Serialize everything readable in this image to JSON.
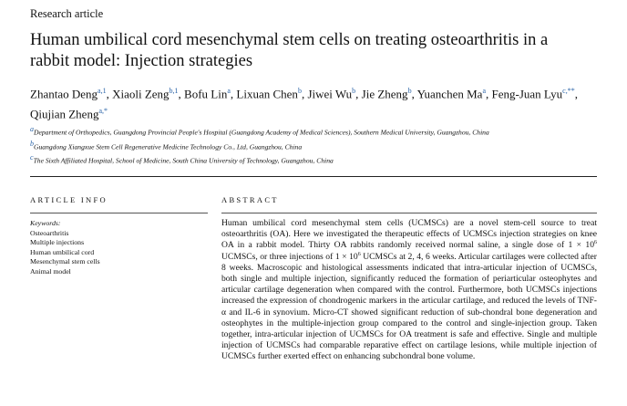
{
  "header": {
    "label": "Research article"
  },
  "title": "Human umbilical cord mesenchymal stem cells on treating osteoarthritis in a rabbit model: Injection strategies",
  "authors": {
    "separator": ", ",
    "list": [
      {
        "name": "Zhantao Deng",
        "sup": "a,1"
      },
      {
        "name": "Xiaoli Zeng",
        "sup": "b,1"
      },
      {
        "name": "Bofu Lin",
        "sup": "a"
      },
      {
        "name": "Lixuan Chen",
        "sup": "b"
      },
      {
        "name": "Jiwei Wu",
        "sup": "b"
      },
      {
        "name": "Jie Zheng",
        "sup": "b"
      },
      {
        "name": "Yuanchen Ma",
        "sup": "a"
      },
      {
        "name": "Feng-Juan Lyu",
        "sup": "c,**"
      },
      {
        "name": "Qiujian Zheng",
        "sup": "a,*"
      }
    ]
  },
  "affiliations": [
    {
      "mark": "a",
      "text": "Department of Orthopedics, Guangdong Provincial People's Hospital (Guangdong Academy of Medical Sciences), Southern Medical University, Guangzhou, China"
    },
    {
      "mark": "b",
      "text": "Guangdong Xiangxue Stem Cell Regenerative Medicine Technology Co., Ltd, Guangzhou, China"
    },
    {
      "mark": "c",
      "text": "The Sixth Affiliated Hospital, School of Medicine, South China University of Technology, Guangzhou, China"
    }
  ],
  "article_info": {
    "heading": "ARTICLE INFO",
    "keywords_label": "Keywords:",
    "keywords": [
      "Osteoarthritis",
      "Multiple injections",
      "Human umbilical cord",
      "Mesenchymal stem cells",
      "Animal model"
    ]
  },
  "abstract": {
    "heading": "ABSTRACT",
    "parts": [
      {
        "text": "Human umbilical cord mesenchymal stem cells (UCMSCs) are a novel stem-cell source to treat osteoarthritis (OA). Here we investigated the therapeutic effects of UCMSCs injection strategies on knee OA in a rabbit model. Thirty OA rabbits randomly received normal saline, a single dose of 1 × 10"
      },
      {
        "sup": "6"
      },
      {
        "text": " UCMSCs, or three injections of 1 × 10"
      },
      {
        "sup": "6"
      },
      {
        "text": " UCMSCs at 2, 4, 6 weeks. Articular cartilages were collected after 8 weeks. Macroscopic and histological assessments indicated that intra-articular injection of UCMSCs, both single and multiple injection, significantly reduced the formation of periarticular osteophytes and articular cartilage degeneration when compared with the control. Furthermore, both UCMSCs injections increased the expression of chondrogenic markers in the articular cartilage, and reduced the levels of TNF-α and IL-6 in synovium. Micro-CT showed significant reduction of sub-chondral bone degeneration and osteophytes in the multiple-injection group compared to the control and single-injection group. Taken together, intra-articular injection of UCMSCs for OA treatment is safe and effective. Single and multiple injection of UCMSCs had comparable reparative effect on cartilage lesions, while multiple injection of UCMSCs further exerted effect on enhancing subchondral bone volume."
      }
    ]
  }
}
